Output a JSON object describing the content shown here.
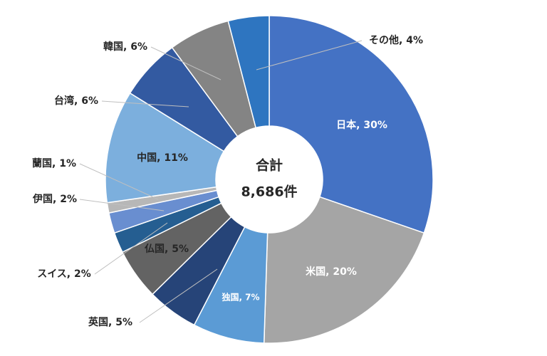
{
  "chart_data": {
    "type": "donut",
    "values": [
      30,
      20,
      7,
      5,
      5,
      2,
      2,
      1,
      11,
      6,
      6,
      4
    ],
    "value_labels": [
      "日本, 30%",
      "米国, 20%",
      "独国, 7%",
      "英国, 5%",
      "仏国, 5%",
      "スイス, 2%",
      "伊国, 2%",
      "蘭国, 1%",
      "中国, 11%",
      "台湾, 6%",
      "韓国, 6%",
      "その他, 4%"
    ],
    "colors": [
      "#4472c4",
      "#a5a5a5",
      "#5b9bd5",
      "#264478",
      "#636363",
      "#255e91",
      "#698ed0",
      "#b7b7b7",
      "#7cafdd",
      "#335aa1",
      "#848484",
      "#2e75c0"
    ],
    "center_title": "合計",
    "center_total": "8,686件"
  }
}
